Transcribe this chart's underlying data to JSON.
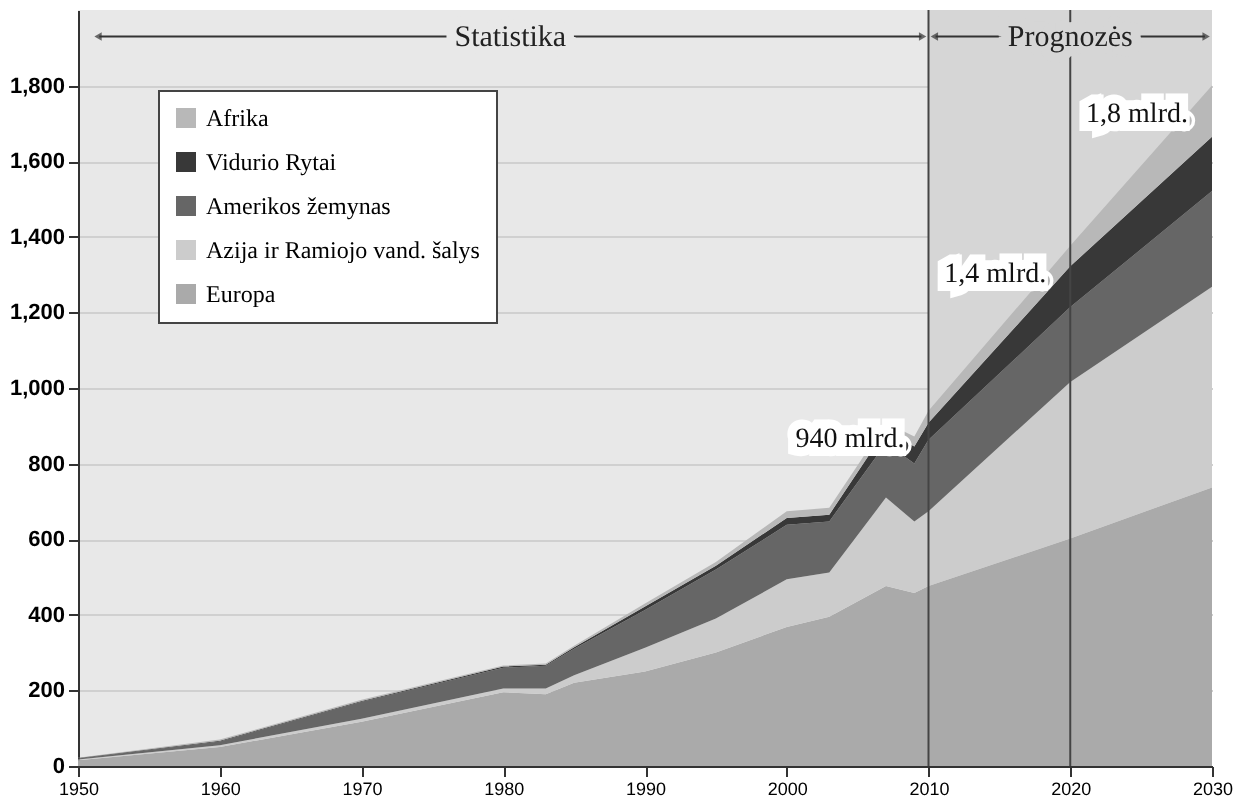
{
  "chart_data": {
    "type": "area",
    "stacked": true,
    "x": [
      1950,
      1960,
      1970,
      1980,
      1983,
      1985,
      1990,
      1995,
      2000,
      2003,
      2007,
      2009,
      2010,
      2020,
      2030
    ],
    "series": [
      {
        "name": "Europa",
        "color": "#aaaaaa",
        "values": [
          15,
          50,
          117,
          195,
          190,
          220,
          250,
          300,
          368,
          395,
          476,
          458,
          476,
          602,
          737
        ]
      },
      {
        "name": "Azija ir Ramiojo vand. šalys",
        "color": "#cccccc",
        "values": [
          2,
          5,
          8,
          10,
          15,
          20,
          63,
          90,
          126,
          117,
          234,
          189,
          198,
          414,
          531
        ]
      },
      {
        "name": "Amerikos žemynas",
        "color": "#666666",
        "values": [
          3,
          10,
          45,
          55,
          60,
          70,
          100,
          130,
          144,
          135,
          144,
          153,
          189,
          198,
          253
        ]
      },
      {
        "name": "Vidurio Rytai",
        "color": "#383838",
        "values": [
          1,
          2,
          2,
          3,
          3,
          4,
          9,
          10,
          18,
          18,
          36,
          45,
          45,
          108,
          144
        ]
      },
      {
        "name": "Afrika",
        "color": "#b8b8b8",
        "values": [
          1,
          3,
          3,
          3,
          3,
          4,
          8,
          10,
          18,
          18,
          18,
          27,
          32,
          54,
          135
        ]
      }
    ],
    "xlim": [
      1950,
      2030
    ],
    "xticks": [
      1950,
      1960,
      1970,
      1980,
      1990,
      2000,
      2010,
      2020,
      2030
    ],
    "ylim": [
      0,
      2000
    ],
    "yticks": [
      0,
      200,
      400,
      600,
      800,
      {
        "value": 1000,
        "label": "1,000"
      },
      {
        "value": 1200,
        "label": "1,200"
      },
      {
        "value": 1400,
        "label": "1,400"
      },
      {
        "value": 1600,
        "label": "1,600"
      },
      {
        "value": 1800,
        "label": "1,800"
      }
    ],
    "grid": "y",
    "legend": "top left",
    "ref_lines": [
      {
        "axis": "x",
        "value": 2010,
        "color": "#444444"
      },
      {
        "axis": "x",
        "value": 2020,
        "color": "#444444"
      }
    ],
    "bands": [
      {
        "axis": "x",
        "from": 2010,
        "to": 2030,
        "label": "Prognozės",
        "color": "#d6d6d6"
      }
    ],
    "annotations": [
      "Statistika",
      {
        "text": "940 mlrd.",
        "x": 2010,
        "y": 940
      },
      {
        "text": "1,4 mlrd.",
        "x": 2020,
        "y": 1376
      },
      {
        "text": "1,8 mlrd.",
        "x": 2030,
        "y": 1800
      }
    ]
  }
}
